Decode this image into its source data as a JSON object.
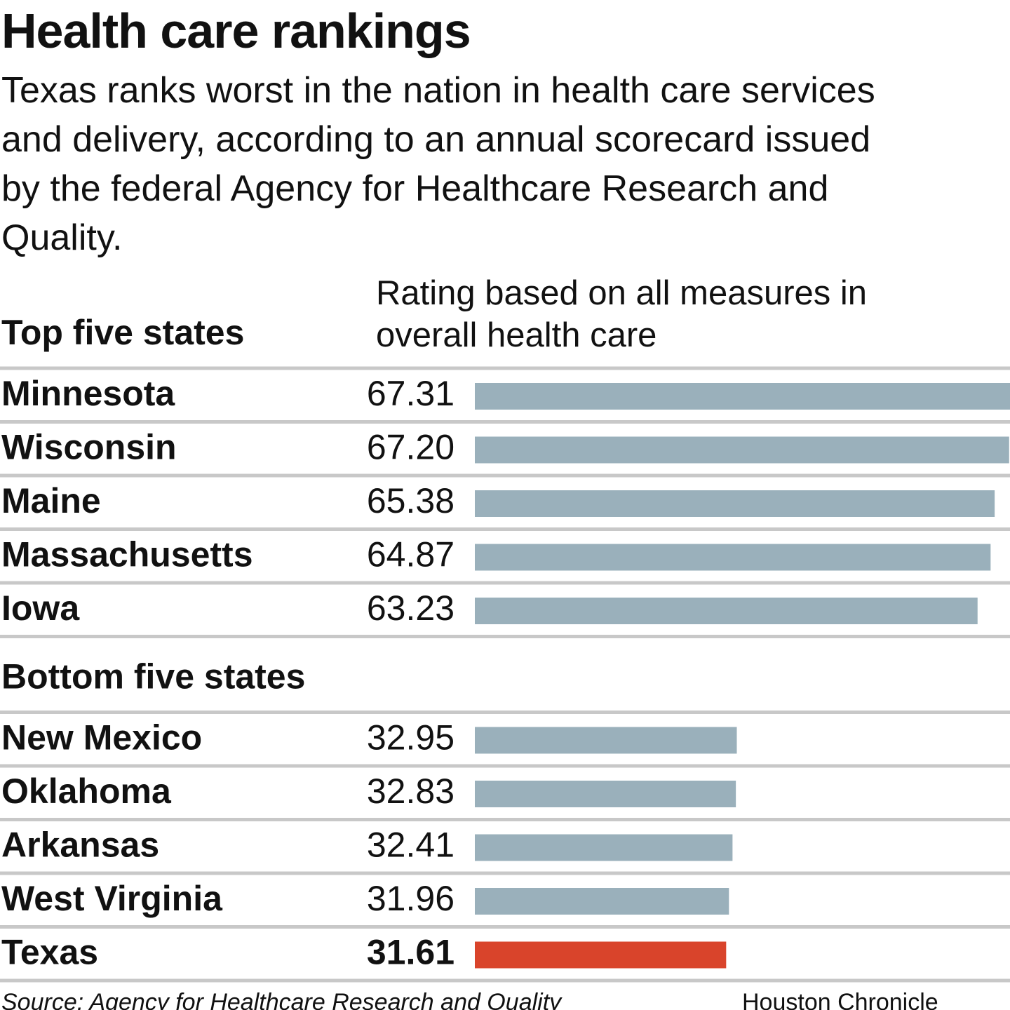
{
  "chart_data": {
    "type": "bar",
    "title": "Health care rankings",
    "subtitle": "Texas ranks worst in the nation in health care services and delivery, according to an annual scorecard issued by the federal Agency for Healthcare Research and Quality.",
    "value_header": "Rating based on all measures in overall health care",
    "groups": [
      {
        "name": "Top five states",
        "categories": [
          "Minnesota",
          "Wisconsin",
          "Maine",
          "Massachusetts",
          "Iowa"
        ],
        "values": [
          67.31,
          67.2,
          65.38,
          64.87,
          63.23
        ],
        "value_labels": [
          "67.31",
          "67.20",
          "65.38",
          "64.87",
          "63.23"
        ],
        "colors": [
          "#9ab0bb",
          "#9ab0bb",
          "#9ab0bb",
          "#9ab0bb",
          "#9ab0bb"
        ]
      },
      {
        "name": "Bottom five states",
        "categories": [
          "New Mexico",
          "Oklahoma",
          "Arkansas",
          "West Virginia",
          "Texas"
        ],
        "values": [
          32.95,
          32.83,
          32.41,
          31.96,
          31.61
        ],
        "value_labels": [
          "32.95",
          "32.83",
          "32.41",
          "31.96",
          "31.61"
        ],
        "colors": [
          "#9ab0bb",
          "#9ab0bb",
          "#9ab0bb",
          "#9ab0bb",
          "#d9442b"
        ]
      }
    ],
    "source": "Source: Agency for Healthcare Research and Quality",
    "credit": "Houston Chronicle"
  }
}
